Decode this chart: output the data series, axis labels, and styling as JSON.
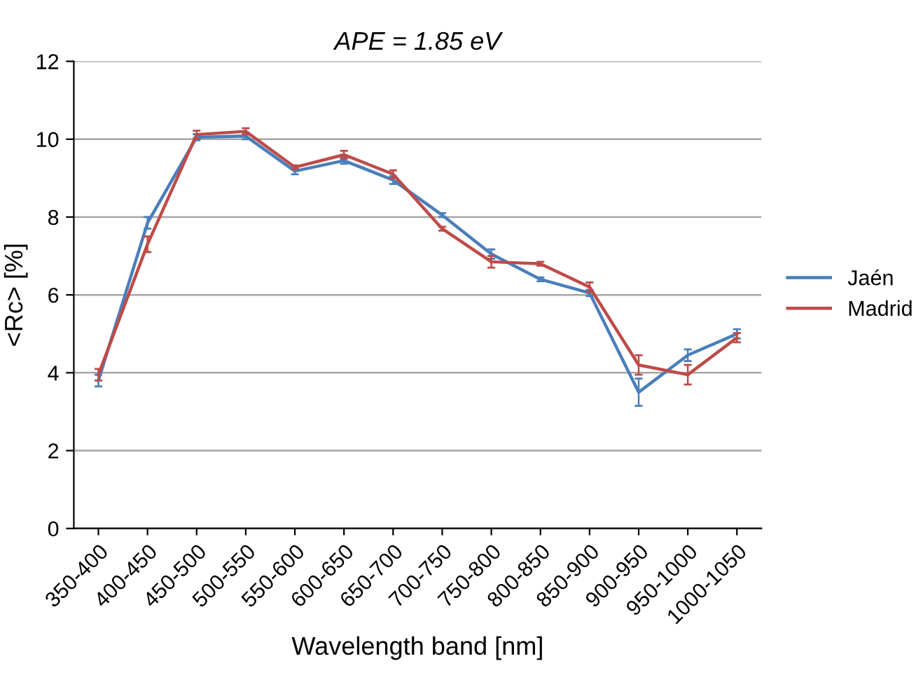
{
  "chart_data": {
    "type": "line",
    "title": "APE = 1.85 eV",
    "xlabel": "Wavelength band [nm]",
    "ylabel": "<Rc> [%]",
    "categories": [
      "350-400",
      "400-450",
      "450-500",
      "500-550",
      "550-600",
      "600-650",
      "650-700",
      "700-750",
      "750-800",
      "800-850",
      "850-900",
      "900-950",
      "950-1000",
      "1000-1050"
    ],
    "series": [
      {
        "name": "Jaén",
        "color": "#4a7ebb",
        "values": [
          3.8,
          7.85,
          10.05,
          10.08,
          9.18,
          9.45,
          8.95,
          8.05,
          7.05,
          6.4,
          6.05,
          3.5,
          4.45,
          5.0
        ],
        "errors": [
          0.15,
          0.15,
          0.08,
          0.08,
          0.08,
          0.08,
          0.1,
          0.05,
          0.12,
          0.05,
          0.08,
          0.35,
          0.15,
          0.12
        ]
      },
      {
        "name": "Madrid",
        "color": "#be4b48",
        "values": [
          3.95,
          7.3,
          10.12,
          10.2,
          9.28,
          9.6,
          9.1,
          7.7,
          6.85,
          6.8,
          6.2,
          4.2,
          3.95,
          4.9
        ],
        "errors": [
          0.15,
          0.2,
          0.1,
          0.08,
          0.05,
          0.1,
          0.1,
          0.05,
          0.15,
          0.05,
          0.12,
          0.25,
          0.25,
          0.12
        ]
      }
    ],
    "ylim": [
      0,
      12
    ],
    "yticks": [
      0,
      2,
      4,
      6,
      8,
      10,
      12
    ],
    "grid": "y",
    "legend": "right",
    "marker": "none",
    "line_style": "solid"
  }
}
